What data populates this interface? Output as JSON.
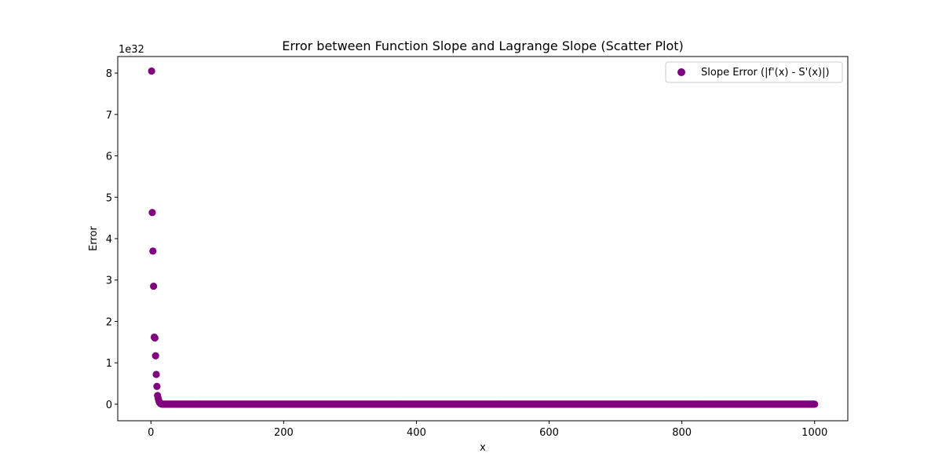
{
  "chart_data": {
    "type": "scatter",
    "title": "Error between Function Slope and Lagrange Slope (Scatter Plot)",
    "xlabel": "x",
    "ylabel": "Error",
    "y_offset_text": "1e32",
    "y_scale_factor": 1e+32,
    "xlim": [
      -50,
      1050
    ],
    "ylim": [
      -0.4,
      8.4
    ],
    "xticks": [
      0,
      200,
      400,
      600,
      800,
      1000
    ],
    "yticks": [
      0,
      1,
      2,
      3,
      4,
      5,
      6,
      7,
      8
    ],
    "legend": {
      "placement": "top-right"
    },
    "grid": false,
    "series": [
      {
        "name": "Slope Error (|f'(x) - S'(x)|)",
        "color": "#800080",
        "points": [
          [
            1,
            8.05
          ],
          [
            2,
            4.63
          ],
          [
            3,
            3.7
          ],
          [
            4,
            2.85
          ],
          [
            5,
            1.62
          ],
          [
            6,
            1.6
          ],
          [
            7,
            1.17
          ],
          [
            8,
            0.72
          ],
          [
            9,
            0.43
          ],
          [
            10,
            0.21
          ],
          [
            11,
            0.14
          ],
          [
            12,
            0.08
          ],
          [
            13,
            0.04
          ],
          [
            14,
            0.02
          ],
          [
            15,
            0.01
          ],
          [
            16,
            0.005
          ]
        ],
        "tail": {
          "x_start": 17,
          "x_end": 1000,
          "step": 1,
          "value": 0
        }
      }
    ]
  }
}
